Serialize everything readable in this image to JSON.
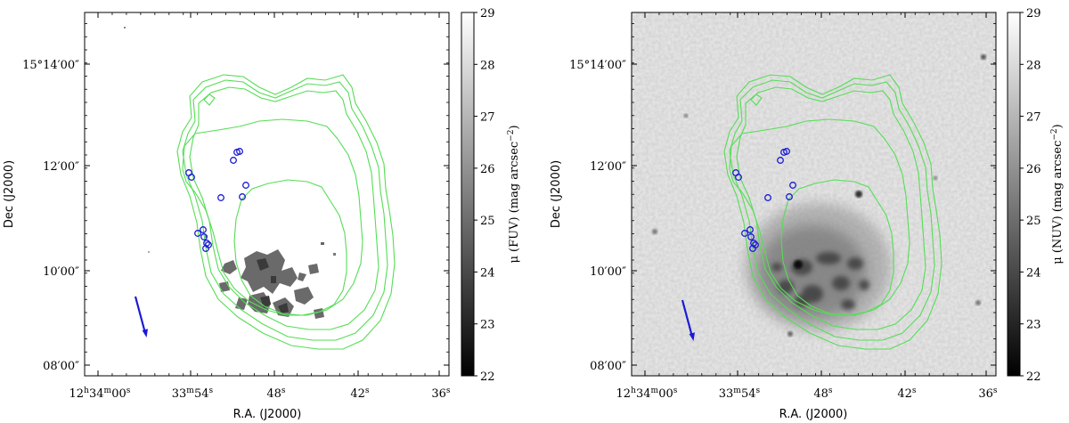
{
  "figure": {
    "colors": {
      "contour": "#55dd55",
      "marker": "#1b1bd6",
      "arrow": "#1b1bd6",
      "frame": "#000000"
    },
    "colormap": "gray (dark = bright surface brightness)"
  },
  "chart_data": [
    {
      "type": "heatmap",
      "title": "",
      "xlabel": "R.A. (J2000)",
      "ylabel": "Dec (J2000)",
      "x_ticks": [
        "12h34m00s",
        "33m54s",
        "48s",
        "42s",
        "36s"
      ],
      "y_ticks": [
        "08′00″",
        "10′00″",
        "12′00″",
        "15°14′00″"
      ],
      "colorbar": {
        "label": "μ (FUV) (mag arcsec⁻²)",
        "ticks": [
          22,
          23,
          24,
          25,
          26,
          27,
          28,
          29
        ],
        "range": [
          22,
          29
        ],
        "reversed": true
      },
      "overlays": [
        "HI column density contours (green)",
        "blue circles",
        "blue arrow"
      ],
      "background": "white (masked)"
    },
    {
      "type": "heatmap",
      "title": "",
      "xlabel": "R.A. (J2000)",
      "ylabel": "Dec (J2000)",
      "x_ticks": [
        "12h34m00s",
        "33m54s",
        "48s",
        "42s",
        "36s"
      ],
      "y_ticks": [
        "08′00″",
        "10′00″",
        "12′00″",
        "15°14′00″"
      ],
      "colorbar": {
        "label": "μ (NUV) (mag arcsec⁻²)",
        "ticks": [
          22,
          23,
          24,
          25,
          26,
          27,
          28,
          29
        ],
        "range": [
          22,
          29
        ],
        "reversed": true
      },
      "overlays": [
        "HI column density contours (green)",
        "blue circles",
        "blue arrow"
      ],
      "background": "light gray noise"
    }
  ],
  "panels": [
    {
      "xlabel": "R.A. (J2000)",
      "ylabel": "Dec (J2000)",
      "x_ticks": [
        {
          "h": "12",
          "m": "34",
          "s": "00"
        },
        {
          "h": "",
          "m": "33",
          "s": "54"
        },
        {
          "h": "",
          "m": "",
          "s": "48"
        },
        {
          "h": "",
          "m": "",
          "s": "42"
        },
        {
          "h": "",
          "m": "",
          "s": "36"
        }
      ],
      "y_ticks": [
        {
          "d": "",
          "m": "08",
          "s": "00"
        },
        {
          "d": "",
          "m": "10",
          "s": "00"
        },
        {
          "d": "",
          "m": "12",
          "s": "00"
        },
        {
          "d": "15",
          "m": "14",
          "s": "00"
        }
      ],
      "cbar_label_main": "μ (FUV) (mag arcsec",
      "cbar_label_sup": "−2",
      "cbar_label_end": ")",
      "cbar_ticks": [
        "22",
        "23",
        "24",
        "25",
        "26",
        "27",
        "28",
        "29"
      ]
    },
    {
      "xlabel": "R.A. (J2000)",
      "ylabel": "Dec (J2000)",
      "x_ticks": [
        {
          "h": "12",
          "m": "34",
          "s": "00"
        },
        {
          "h": "",
          "m": "33",
          "s": "54"
        },
        {
          "h": "",
          "m": "",
          "s": "48"
        },
        {
          "h": "",
          "m": "",
          "s": "42"
        },
        {
          "h": "",
          "m": "",
          "s": "36"
        }
      ],
      "y_ticks": [
        {
          "d": "",
          "m": "08",
          "s": "00"
        },
        {
          "d": "",
          "m": "10",
          "s": "00"
        },
        {
          "d": "",
          "m": "12",
          "s": "00"
        },
        {
          "d": "15",
          "m": "14",
          "s": "00"
        }
      ],
      "cbar_label_main": "μ (NUV) (mag arcsec",
      "cbar_label_sup": "−2",
      "cbar_label_end": ")",
      "cbar_ticks": [
        "22",
        "23",
        "24",
        "25",
        "26",
        "27",
        "28",
        "29"
      ]
    }
  ]
}
